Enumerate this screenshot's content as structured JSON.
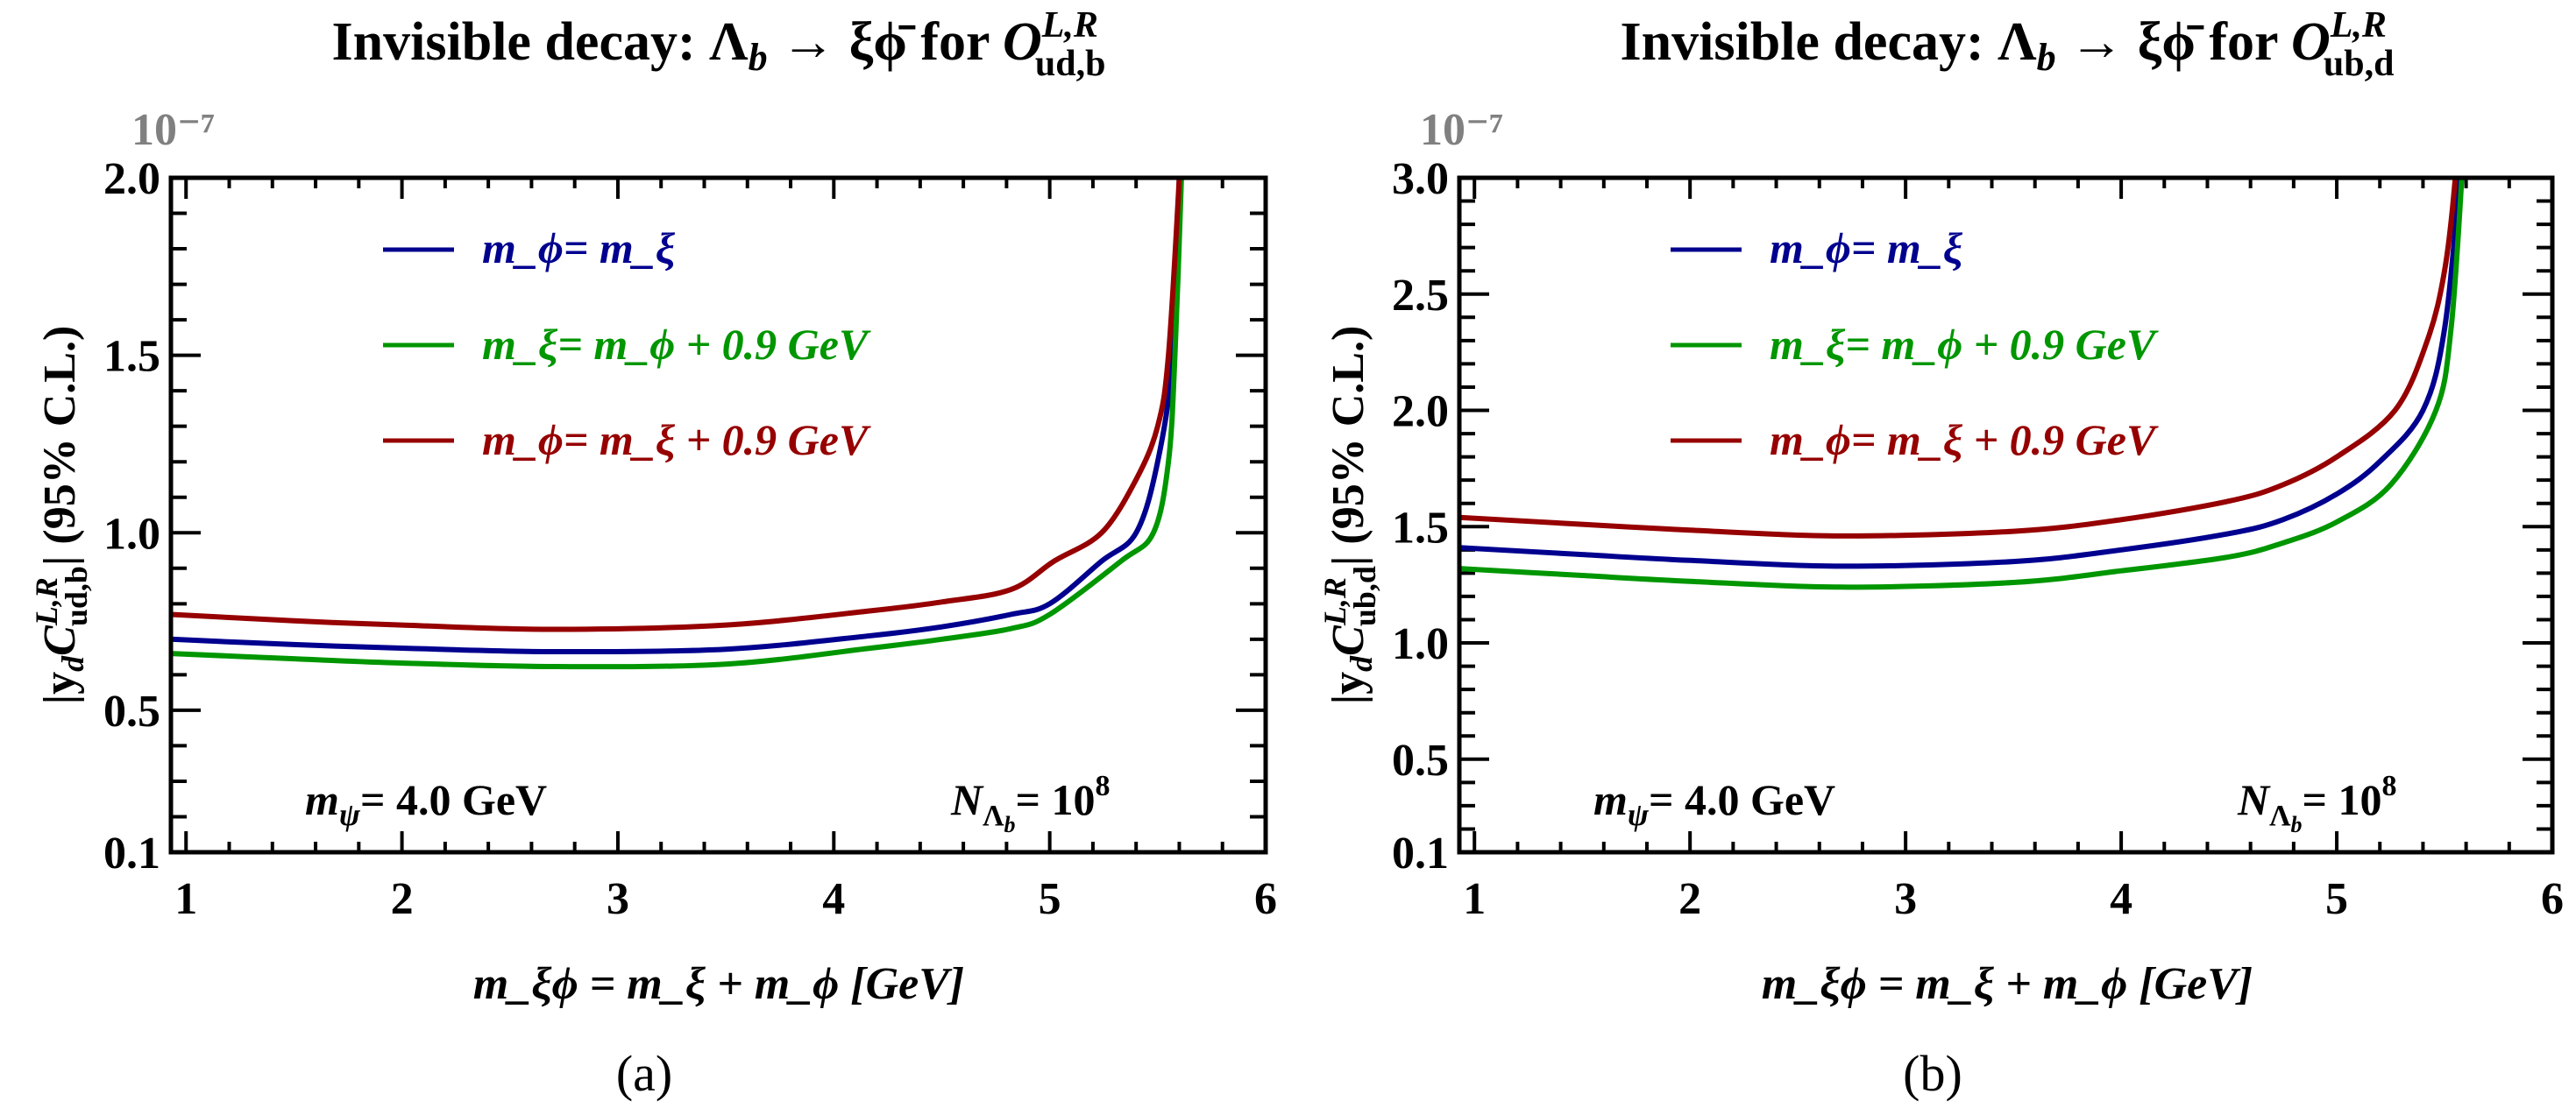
{
  "figure": {
    "captions": [
      "(a)",
      "(b)"
    ]
  },
  "chart_data": [
    {
      "type": "line",
      "panel": "a",
      "title": "Invisible decay: Λ_b → ξϕ̄ for O^{L,R}_{ud,b}",
      "title_parts": {
        "main": "Invisible decay: Λ",
        "sub1": "b",
        "arrow": " → ξϕ̄ for ",
        "op": "O",
        "sup": "L,R",
        "sub2": "ud,b"
      },
      "xlabel": "m_ξϕ = m_ξ + m_ϕ [GeV]",
      "ylabel": "|y_d C^{L,R}_{ud,b}| (95% C.L.)",
      "ylabel_parts": {
        "pre": "|y",
        "sub_y": "d",
        "c": "C",
        "sup": "L,R",
        "sub": "ud,b",
        "post": "| (95% C.L.)"
      },
      "y_multiplier": "10⁻⁷",
      "xlim": [
        0.93,
        6.0
      ],
      "ylim": [
        0.1,
        2.0
      ],
      "xticks": [
        1,
        2,
        3,
        4,
        5,
        6
      ],
      "xtick_labels": [
        "1",
        "2",
        "3",
        "4",
        "5",
        "6"
      ],
      "x_minor_step": 0.2,
      "yticks": [
        0.1,
        0.5,
        1.0,
        1.5,
        2.0
      ],
      "ytick_labels": [
        "0.1",
        "0.5",
        "1.0",
        "1.5",
        "2.0"
      ],
      "y_minor_step": 0.1,
      "grid": false,
      "legend_position": "top-left",
      "annotations": [
        {
          "text": "m_ψ= 4.0 GeV",
          "parts": {
            "m": "m",
            "sub": "ψ",
            "rest": "= 4.0 GeV"
          },
          "position": "bottom-left"
        },
        {
          "text": "N_Λ_b = 10^8",
          "parts": {
            "n": "N",
            "sub": "Λ",
            "subsub": "b",
            "rest": "= 10",
            "sup": "8"
          },
          "position": "bottom-right"
        }
      ],
      "series": [
        {
          "name": "m_ϕ= m_ξ",
          "color": "#00008f",
          "x": [
            0.93,
            1.5,
            2.0,
            2.7,
            3.5,
            4.17,
            4.5,
            4.82,
            5.0,
            5.24,
            5.4,
            5.5,
            5.57,
            5.6
          ],
          "y": [
            0.7,
            0.685,
            0.675,
            0.665,
            0.672,
            0.71,
            0.735,
            0.77,
            0.8,
            0.92,
            1.0,
            1.2,
            1.5,
            2.0
          ]
        },
        {
          "name": "m_ξ= m_ϕ + 0.9 GeV",
          "color": "#009600",
          "x": [
            0.93,
            1.5,
            2.0,
            2.7,
            3.5,
            4.17,
            4.5,
            4.82,
            5.0,
            5.33,
            5.48,
            5.55,
            5.58,
            5.61
          ],
          "y": [
            0.66,
            0.645,
            0.633,
            0.623,
            0.63,
            0.675,
            0.7,
            0.73,
            0.77,
            0.92,
            1.0,
            1.2,
            1.5,
            2.0
          ]
        },
        {
          "name": "m_ϕ= m_ξ + 0.9 GeV",
          "color": "#960000",
          "x": [
            0.93,
            1.5,
            2.0,
            2.7,
            3.5,
            4.17,
            4.5,
            4.82,
            5.02,
            5.24,
            5.4,
            5.5,
            5.55,
            5.6
          ],
          "y": [
            0.77,
            0.752,
            0.74,
            0.728,
            0.74,
            0.78,
            0.805,
            0.84,
            0.92,
            1.0,
            1.15,
            1.3,
            1.5,
            2.0
          ]
        }
      ]
    },
    {
      "type": "line",
      "panel": "b",
      "title": "Invisible decay: Λ_b → ξϕ̄ for O^{L,R}_{ub,d}",
      "title_parts": {
        "main": "Invisible decay: Λ",
        "sub1": "b",
        "arrow": " → ξϕ̄ for ",
        "op": "O",
        "sup": "L,R",
        "sub2": "ub,d"
      },
      "xlabel": "m_ξϕ = m_ξ + m_ϕ [GeV]",
      "ylabel": "|y_d C^{L,R}_{ub,d}| (95% C.L.)",
      "ylabel_parts": {
        "pre": "|y",
        "sub_y": "d",
        "c": "C",
        "sup": "L,R",
        "sub": "ub,d",
        "post": "| (95% C.L.)"
      },
      "y_multiplier": "10⁻⁷",
      "xlim": [
        0.93,
        6.0
      ],
      "ylim": [
        0.1,
        3.0
      ],
      "xticks": [
        1,
        2,
        3,
        4,
        5,
        6
      ],
      "xtick_labels": [
        "1",
        "2",
        "3",
        "4",
        "5",
        "6"
      ],
      "x_minor_step": 0.2,
      "yticks": [
        0.1,
        0.5,
        1.0,
        1.5,
        2.0,
        2.5,
        3.0
      ],
      "ytick_labels": [
        "0.1",
        "0.5",
        "1.0",
        "1.5",
        "2.0",
        "2.5",
        "3.0"
      ],
      "y_minor_step": 0.1,
      "grid": false,
      "legend_position": "top-left",
      "annotations": [
        {
          "text": "m_ψ= 4.0 GeV",
          "parts": {
            "m": "m",
            "sub": "ψ",
            "rest": "= 4.0 GeV"
          },
          "position": "bottom-left"
        },
        {
          "text": "N_Λ_b = 10^8",
          "parts": {
            "n": "N",
            "sub": "Λ",
            "subsub": "b",
            "rest": "= 10",
            "sup": "8"
          },
          "position": "bottom-right"
        }
      ],
      "series": [
        {
          "name": "m_ϕ= m_ξ",
          "color": "#00008f",
          "x": [
            0.93,
            1.5,
            2.0,
            2.7,
            3.5,
            4.0,
            4.5,
            4.75,
            5.0,
            5.2,
            5.4,
            5.5,
            5.57
          ],
          "y": [
            1.41,
            1.38,
            1.355,
            1.33,
            1.35,
            1.4,
            1.47,
            1.53,
            1.64,
            1.78,
            2.0,
            2.35,
            3.0
          ]
        },
        {
          "name": "m_ξ= m_ϕ + 0.9 GeV",
          "color": "#009600",
          "x": [
            0.93,
            1.5,
            2.0,
            2.7,
            3.5,
            4.0,
            4.5,
            4.75,
            5.0,
            5.25,
            5.46,
            5.53,
            5.58
          ],
          "y": [
            1.32,
            1.29,
            1.265,
            1.24,
            1.26,
            1.31,
            1.37,
            1.43,
            1.52,
            1.68,
            2.0,
            2.35,
            3.0
          ]
        },
        {
          "name": "m_ϕ= m_ξ + 0.9 GeV",
          "color": "#960000",
          "x": [
            0.93,
            1.5,
            2.0,
            2.7,
            3.5,
            4.0,
            4.5,
            4.75,
            5.0,
            5.27,
            5.42,
            5.5,
            5.55
          ],
          "y": [
            1.54,
            1.51,
            1.485,
            1.46,
            1.48,
            1.53,
            1.61,
            1.68,
            1.8,
            2.0,
            2.3,
            2.6,
            3.0
          ]
        }
      ]
    }
  ]
}
